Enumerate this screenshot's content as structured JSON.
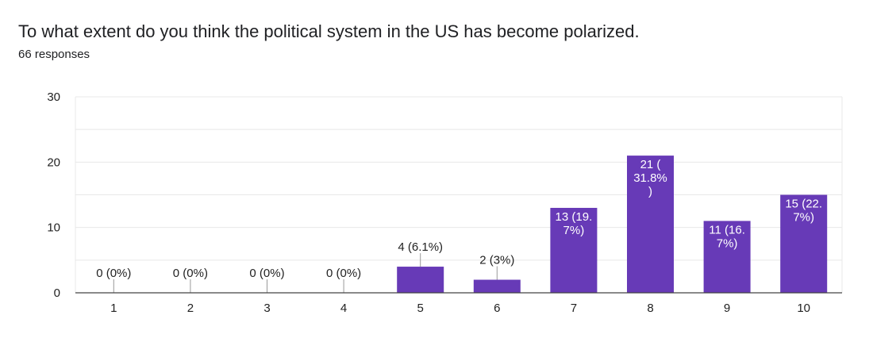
{
  "question": {
    "title": "To what extent do you think the political system in the US has become polarized.",
    "responses": "66 responses"
  },
  "colors": {
    "bar": "#673ab7",
    "grid": "#e8e8e8",
    "axis": "#444444",
    "leader": "#999999"
  },
  "chart_data": {
    "type": "bar",
    "title": "To what extent do you think the political system in the US has become polarized.",
    "xlabel": "",
    "ylabel": "",
    "ylim": [
      0,
      30
    ],
    "yticks": [
      0,
      10,
      20,
      30
    ],
    "grid": true,
    "categories": [
      "1",
      "2",
      "3",
      "4",
      "5",
      "6",
      "7",
      "8",
      "9",
      "10"
    ],
    "values": [
      0,
      0,
      0,
      0,
      4,
      2,
      13,
      21,
      11,
      15
    ],
    "data_labels": [
      [
        "0 (0%)"
      ],
      [
        "0 (0%)"
      ],
      [
        "0 (0%)"
      ],
      [
        "0 (0%)"
      ],
      [
        "4 (6.1%)"
      ],
      [
        "2 (3%)"
      ],
      [
        "13 (19.",
        "7%)"
      ],
      [
        "21 (",
        "31.8%",
        ")"
      ],
      [
        "11 (16.",
        "7%)"
      ],
      [
        "15 (22.",
        "7%)"
      ]
    ]
  }
}
